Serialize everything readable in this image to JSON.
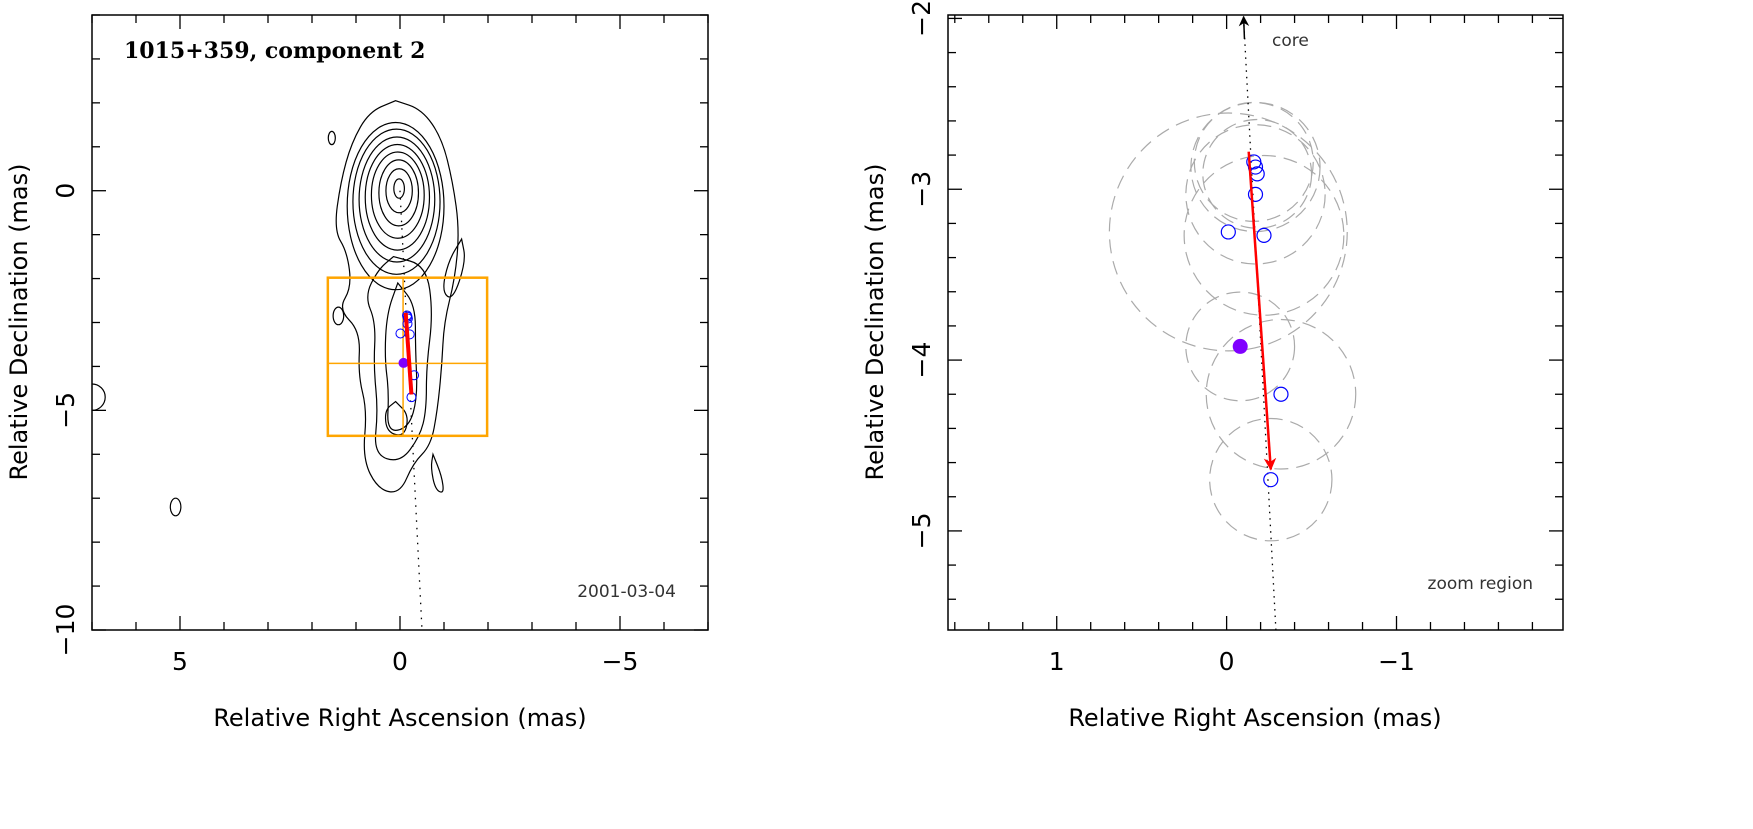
{
  "chart_data": [
    {
      "type": "contour",
      "title": "1015+359, component 2",
      "date_label": "2001-03-04",
      "xlabel": "Relative Right Ascension (mas)",
      "ylabel": "Relative Declination (mas)",
      "xlim": [
        7,
        -7
      ],
      "ylim": [
        -10,
        4
      ],
      "xticks": [
        5,
        0,
        -5
      ],
      "yticks": [
        0,
        -5,
        -10
      ],
      "xtick_labels": [
        "5",
        "0",
        "−5"
      ],
      "ytick_labels": [
        "0",
        "−5",
        "−10"
      ],
      "core_ellipses": [
        {
          "ra": 0.02,
          "dec": 0.05,
          "a": 0.12,
          "b": 0.22
        },
        {
          "ra": 0.02,
          "dec": 0.0,
          "a": 0.3,
          "b": 0.5
        },
        {
          "ra": 0.03,
          "dec": -0.05,
          "a": 0.45,
          "b": 0.75
        },
        {
          "ra": 0.05,
          "dec": -0.1,
          "a": 0.6,
          "b": 0.98
        },
        {
          "ra": 0.06,
          "dec": -0.15,
          "a": 0.73,
          "b": 1.2
        },
        {
          "ra": 0.07,
          "dec": -0.2,
          "a": 0.86,
          "b": 1.42
        },
        {
          "ra": 0.08,
          "dec": -0.25,
          "a": 0.99,
          "b": 1.65
        },
        {
          "ra": 0.1,
          "dec": -0.35,
          "a": 1.1,
          "b": 1.9
        }
      ],
      "jet_contours": [
        [
          [
            0.1,
            2.05
          ],
          [
            -0.5,
            1.85
          ],
          [
            -0.95,
            1.2
          ],
          [
            -1.2,
            0.2
          ],
          [
            -1.35,
            -0.9
          ],
          [
            -1.25,
            -2.0
          ],
          [
            -1.0,
            -3.0
          ],
          [
            -0.95,
            -4.0
          ],
          [
            -0.85,
            -5.0
          ],
          [
            -0.7,
            -5.8
          ],
          [
            -0.3,
            -6.2
          ],
          [
            0.0,
            -6.9
          ],
          [
            0.5,
            -6.8
          ],
          [
            0.85,
            -6.1
          ],
          [
            0.75,
            -5.0
          ],
          [
            0.95,
            -4.2
          ],
          [
            0.9,
            -3.2
          ],
          [
            1.4,
            -2.7
          ],
          [
            1.1,
            -2.2
          ],
          [
            1.2,
            -1.4
          ],
          [
            1.5,
            -0.9
          ],
          [
            1.35,
            0.2
          ],
          [
            1.1,
            1.1
          ],
          [
            0.7,
            1.8
          ],
          [
            0.1,
            2.05
          ]
        ],
        [
          [
            0.15,
            -1.5
          ],
          [
            -0.6,
            -1.7
          ],
          [
            -0.75,
            -2.8
          ],
          [
            -0.6,
            -4.0
          ],
          [
            -0.6,
            -5.0
          ],
          [
            -0.45,
            -5.6
          ],
          [
            0.0,
            -6.2
          ],
          [
            0.6,
            -6.0
          ],
          [
            0.5,
            -5.0
          ],
          [
            0.6,
            -4.0
          ],
          [
            0.55,
            -3.0
          ],
          [
            0.8,
            -2.4
          ],
          [
            0.5,
            -1.8
          ],
          [
            0.15,
            -1.5
          ]
        ],
        [
          [
            0.05,
            -2.1
          ],
          [
            -0.35,
            -2.6
          ],
          [
            -0.35,
            -3.6
          ],
          [
            -0.4,
            -4.7
          ],
          [
            -0.2,
            -5.4
          ],
          [
            0.3,
            -5.5
          ],
          [
            0.25,
            -4.6
          ],
          [
            0.35,
            -3.8
          ],
          [
            0.3,
            -2.8
          ],
          [
            0.05,
            -2.1
          ]
        ],
        [
          [
            0.1,
            -4.8
          ],
          [
            -0.2,
            -5.1
          ],
          [
            -0.1,
            -5.6
          ],
          [
            0.3,
            -5.5
          ],
          [
            0.35,
            -5.0
          ],
          [
            0.1,
            -4.8
          ]
        ],
        [
          [
            -1.4,
            -1.1
          ],
          [
            -1.5,
            -1.6
          ],
          [
            -1.2,
            -2.5
          ],
          [
            -0.95,
            -2.3
          ],
          [
            -1.1,
            -1.6
          ],
          [
            -1.4,
            -1.1
          ]
        ],
        [
          [
            -0.75,
            -6.0
          ],
          [
            -0.95,
            -6.5
          ],
          [
            -1.0,
            -6.9
          ],
          [
            -0.8,
            -6.8
          ],
          [
            -0.7,
            -6.3
          ],
          [
            -0.75,
            -6.0
          ]
        ]
      ],
      "blob_ellipses": [
        {
          "ra": 1.55,
          "dec": 1.2,
          "a": 0.08,
          "b": 0.15
        },
        {
          "ra": 1.4,
          "dec": -2.85,
          "a": 0.12,
          "b": 0.2
        },
        {
          "ra": 5.1,
          "dec": -7.2,
          "a": 0.12,
          "b": 0.2
        },
        {
          "ra": 7.0,
          "dec": -4.7,
          "a": 0.3,
          "b": 0.3
        }
      ],
      "zoom_box": {
        "ra": [
          1.64,
          -1.98
        ],
        "dec": [
          -1.98,
          -5.58
        ],
        "crosshair": {
          "ra": -0.07,
          "dec": -3.93
        }
      },
      "trajectory_line": {
        "from": [
          0,
          0
        ],
        "to": [
          -0.5,
          -10
        ]
      },
      "colors": {
        "contour": "#000000",
        "zoom_box": "#ffa500",
        "arrow": "#ff0000",
        "points": "#0000ff",
        "reference": "#8000ff"
      }
    },
    {
      "type": "scatter",
      "core_label": "core",
      "region_label": "zoom region",
      "xlabel": "Relative Right Ascension (mas)",
      "ylabel": "Relative Declination (mas)",
      "xlim": [
        1.64,
        -1.98
      ],
      "ylim": [
        -5.58,
        -1.98
      ],
      "xticks": [
        1,
        0,
        -1
      ],
      "yticks": [
        -2,
        -3,
        -4,
        -5
      ],
      "xtick_labels": [
        "1",
        "0",
        "−1"
      ],
      "ytick_labels": [
        "−2",
        "−3",
        "−4",
        "−5"
      ],
      "points": [
        {
          "ra": -0.16,
          "dec": -2.84,
          "size": 0.35
        },
        {
          "ra": -0.17,
          "dec": -2.87,
          "size": 0.38
        },
        {
          "ra": -0.18,
          "dec": -2.91,
          "size": 0.32
        },
        {
          "ra": -0.17,
          "dec": -3.03,
          "size": 0.41
        },
        {
          "ra": -0.01,
          "dec": -3.25,
          "size": 0.7
        },
        {
          "ra": -0.22,
          "dec": -3.27,
          "size": 0.47
        },
        {
          "ra": -0.32,
          "dec": -4.2,
          "size": 0.44
        },
        {
          "ra": -0.26,
          "dec": -4.7,
          "size": 0.36
        }
      ],
      "reference_point": {
        "ra": -0.08,
        "dec": -3.92,
        "size": 0.32
      },
      "motion_arrow": {
        "from": [
          -0.13,
          -2.78
        ],
        "to": [
          -0.26,
          -4.64
        ]
      },
      "trajectory_line": {
        "from": [
          -0.1,
          -2.0
        ],
        "to": [
          -0.29,
          -5.58
        ]
      },
      "colors": {
        "arrow": "#ff0000",
        "points": "#0000ff",
        "reference": "#8000ff",
        "size_circles": "#aaaaaa"
      }
    }
  ]
}
